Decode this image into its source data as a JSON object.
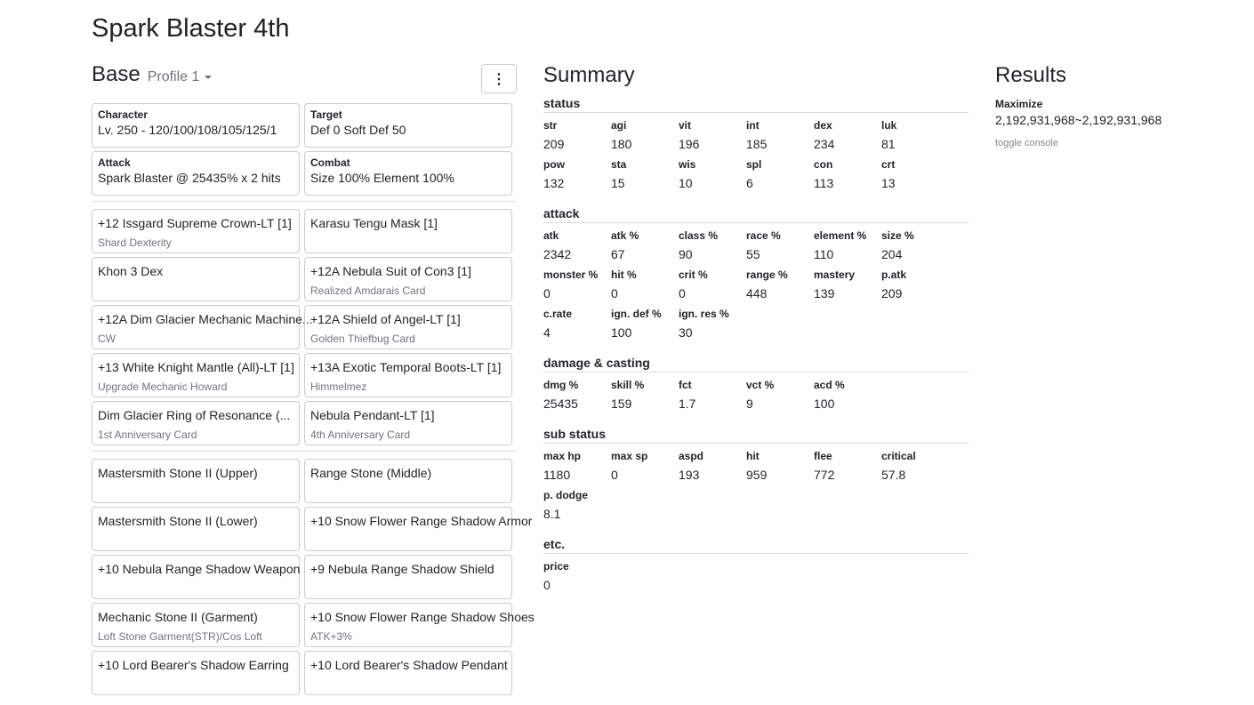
{
  "page_title": "Spark Blaster 4th",
  "base": {
    "title": "Base",
    "profile": "Profile 1",
    "menu_icon": "vertical-ellipsis-icon",
    "info_cards": [
      {
        "label": "Character",
        "value": "Lv. 250 - 120/100/108/105/125/1"
      },
      {
        "label": "Target",
        "value": "Def 0 Soft Def 50"
      },
      {
        "label": "Attack",
        "value": "Spark Blaster @ 25435% x 2 hits"
      },
      {
        "label": "Combat",
        "value": "Size 100% Element 100%"
      }
    ],
    "equipment": [
      {
        "name": "+12 Issgard Supreme Crown-LT [1]",
        "sub": "Shard Dexterity"
      },
      {
        "name": "Karasu Tengu Mask [1]",
        "sub": ""
      },
      {
        "name": "Khon 3 Dex",
        "sub": ""
      },
      {
        "name": "+12A Nebula Suit of Con3 [1]",
        "sub": "Realized Amdarais Card"
      },
      {
        "name": "+12A Dim Glacier Mechanic Machine...",
        "sub": "CW"
      },
      {
        "name": "+12A Shield of Angel-LT [1]",
        "sub": "Golden Thiefbug Card"
      },
      {
        "name": "+13 White Knight Mantle (All)-LT [1]",
        "sub": "Upgrade Mechanic Howard"
      },
      {
        "name": "+13A Exotic Temporal Boots-LT [1]",
        "sub": "Himmelmez"
      },
      {
        "name": "Dim Glacier Ring of Resonance (...",
        "sub": "1st Anniversary Card"
      },
      {
        "name": "Nebula Pendant-LT [1]",
        "sub": "4th Anniversary Card"
      }
    ],
    "shadow": [
      {
        "name": "Mastersmith Stone II (Upper)",
        "sub": ""
      },
      {
        "name": "Range Stone (Middle)",
        "sub": ""
      },
      {
        "name": "Mastersmith Stone II (Lower)",
        "sub": ""
      },
      {
        "name": "+10 Snow Flower Range Shadow Armor",
        "sub": ""
      },
      {
        "name": "+10 Nebula Range Shadow Weapon",
        "sub": ""
      },
      {
        "name": "+9 Nebula Range Shadow Shield",
        "sub": ""
      },
      {
        "name": "Mechanic Stone II (Garment)",
        "sub": "Loft Stone Garment(STR)/Cos Loft"
      },
      {
        "name": "+10 Snow Flower Range Shadow Shoes",
        "sub": "ATK+3%"
      },
      {
        "name": "+10 Lord Bearer's Shadow Earring",
        "sub": ""
      },
      {
        "name": "+10 Lord Bearer's Shadow Pendant",
        "sub": ""
      }
    ]
  },
  "summary": {
    "title": "Summary",
    "sections": [
      {
        "title": "status",
        "stats": [
          {
            "k": "str",
            "v": "209"
          },
          {
            "k": "agi",
            "v": "180"
          },
          {
            "k": "vit",
            "v": "196"
          },
          {
            "k": "int",
            "v": "185"
          },
          {
            "k": "dex",
            "v": "234"
          },
          {
            "k": "luk",
            "v": "81"
          },
          {
            "k": "pow",
            "v": "132"
          },
          {
            "k": "sta",
            "v": "15"
          },
          {
            "k": "wis",
            "v": "10"
          },
          {
            "k": "spl",
            "v": "6"
          },
          {
            "k": "con",
            "v": "113"
          },
          {
            "k": "crt",
            "v": "13"
          }
        ]
      },
      {
        "title": "attack",
        "stats": [
          {
            "k": "atk",
            "v": "2342"
          },
          {
            "k": "atk %",
            "v": "67"
          },
          {
            "k": "class %",
            "v": "90"
          },
          {
            "k": "race %",
            "v": "55"
          },
          {
            "k": "element %",
            "v": "110"
          },
          {
            "k": "size %",
            "v": "204"
          },
          {
            "k": "monster %",
            "v": "0"
          },
          {
            "k": "hit %",
            "v": "0"
          },
          {
            "k": "crit %",
            "v": "0"
          },
          {
            "k": "range %",
            "v": "448"
          },
          {
            "k": "mastery",
            "v": "139"
          },
          {
            "k": "p.atk",
            "v": "209"
          },
          {
            "k": "c.rate",
            "v": "4"
          },
          {
            "k": "ign. def %",
            "v": "100"
          },
          {
            "k": "ign. res %",
            "v": "30"
          }
        ]
      },
      {
        "title": "damage & casting",
        "stats": [
          {
            "k": "dmg %",
            "v": "25435"
          },
          {
            "k": "skill %",
            "v": "159"
          },
          {
            "k": "fct",
            "v": "1.7"
          },
          {
            "k": "vct %",
            "v": "9"
          },
          {
            "k": "acd %",
            "v": "100"
          }
        ]
      },
      {
        "title": "sub status",
        "stats": [
          {
            "k": "max hp",
            "v": "1180"
          },
          {
            "k": "max sp",
            "v": "0"
          },
          {
            "k": "aspd",
            "v": "193"
          },
          {
            "k": "hit",
            "v": "959"
          },
          {
            "k": "flee",
            "v": "772"
          },
          {
            "k": "critical",
            "v": "57.8"
          },
          {
            "k": "p. dodge",
            "v": "8.1"
          }
        ]
      },
      {
        "title": "etc.",
        "stats": [
          {
            "k": "price",
            "v": "0"
          }
        ]
      }
    ]
  },
  "results": {
    "title": "Results",
    "label": "Maximize",
    "value": "2,192,931,968~2,192,931,968",
    "toggle_console": "toggle console"
  }
}
